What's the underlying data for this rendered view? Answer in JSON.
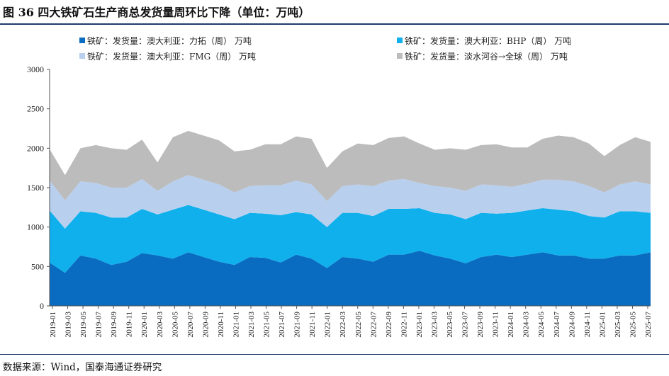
{
  "figure": {
    "title": "图 36 四大铁矿石生产商总发货量周环比下降（单位：万吨）",
    "source": "数据来源：Wind，国泰海通证券研究"
  },
  "chart_data": {
    "type": "area",
    "stacked": true,
    "title": "",
    "xlabel": "",
    "ylabel": "",
    "ylim": [
      0,
      3000
    ],
    "yticks": [
      "0",
      "500",
      "1000",
      "1500",
      "2000",
      "2500",
      "3000"
    ],
    "xticks": [
      "2019-01",
      "2019-03",
      "2019-05",
      "2019-07",
      "2019-09",
      "2019-11",
      "2020-01",
      "2020-03",
      "2020-05",
      "2020-07",
      "2020-09",
      "2020-11",
      "2021-01",
      "2021-03",
      "2021-05",
      "2021-07",
      "2021-09",
      "2021-11",
      "2022-01",
      "2022-03",
      "2022-05",
      "2022-07",
      "2022-09",
      "2022-11",
      "2023-01",
      "2023-03",
      "2023-05",
      "2023-07",
      "2023-09",
      "2023-11",
      "2024-01",
      "2024-03",
      "2024-05",
      "2024-07",
      "2024-09",
      "2024-11",
      "2025-01",
      "2025-03",
      "2025-05",
      "2025-07"
    ],
    "grid": false,
    "legend_position": "top",
    "series": [
      {
        "name": "铁矿：发货量：澳大利亚：力拓（周） 万吨",
        "color": "#0a6cc0",
        "values": [
          550,
          420,
          640,
          600,
          520,
          560,
          670,
          640,
          600,
          680,
          620,
          560,
          520,
          620,
          610,
          550,
          650,
          600,
          480,
          620,
          600,
          560,
          650,
          650,
          700,
          640,
          600,
          540,
          620,
          650,
          620,
          650,
          680,
          640,
          640,
          600,
          600,
          640,
          640,
          680
        ]
      },
      {
        "name": "铁矿：发货量：澳大利亚：BHP（周） 万吨",
        "color": "#0fb0ec",
        "values": [
          660,
          560,
          560,
          580,
          600,
          560,
          560,
          520,
          620,
          600,
          600,
          600,
          580,
          560,
          560,
          600,
          540,
          560,
          520,
          560,
          580,
          580,
          580,
          580,
          540,
          540,
          560,
          560,
          560,
          520,
          560,
          560,
          560,
          580,
          560,
          540,
          520,
          560,
          560,
          500
        ]
      },
      {
        "name": "铁矿：发货量：澳大利亚：FMG（周） 万吨",
        "color": "#b8cfee",
        "values": [
          380,
          360,
          380,
          380,
          380,
          380,
          380,
          300,
          360,
          380,
          380,
          380,
          340,
          340,
          360,
          380,
          400,
          380,
          330,
          340,
          360,
          380,
          360,
          380,
          320,
          340,
          340,
          360,
          360,
          360,
          330,
          340,
          360,
          380,
          380,
          380,
          320,
          340,
          380,
          360
        ]
      },
      {
        "name": "铁矿：发货量：淡水河谷→全球（周） 万吨",
        "color": "#bcbcbc",
        "values": [
          400,
          320,
          420,
          480,
          500,
          480,
          500,
          360,
          560,
          560,
          560,
          560,
          520,
          460,
          520,
          520,
          560,
          580,
          420,
          440,
          520,
          520,
          540,
          540,
          500,
          460,
          500,
          520,
          500,
          520,
          500,
          460,
          520,
          560,
          560,
          540,
          460,
          500,
          560,
          540
        ]
      }
    ]
  }
}
